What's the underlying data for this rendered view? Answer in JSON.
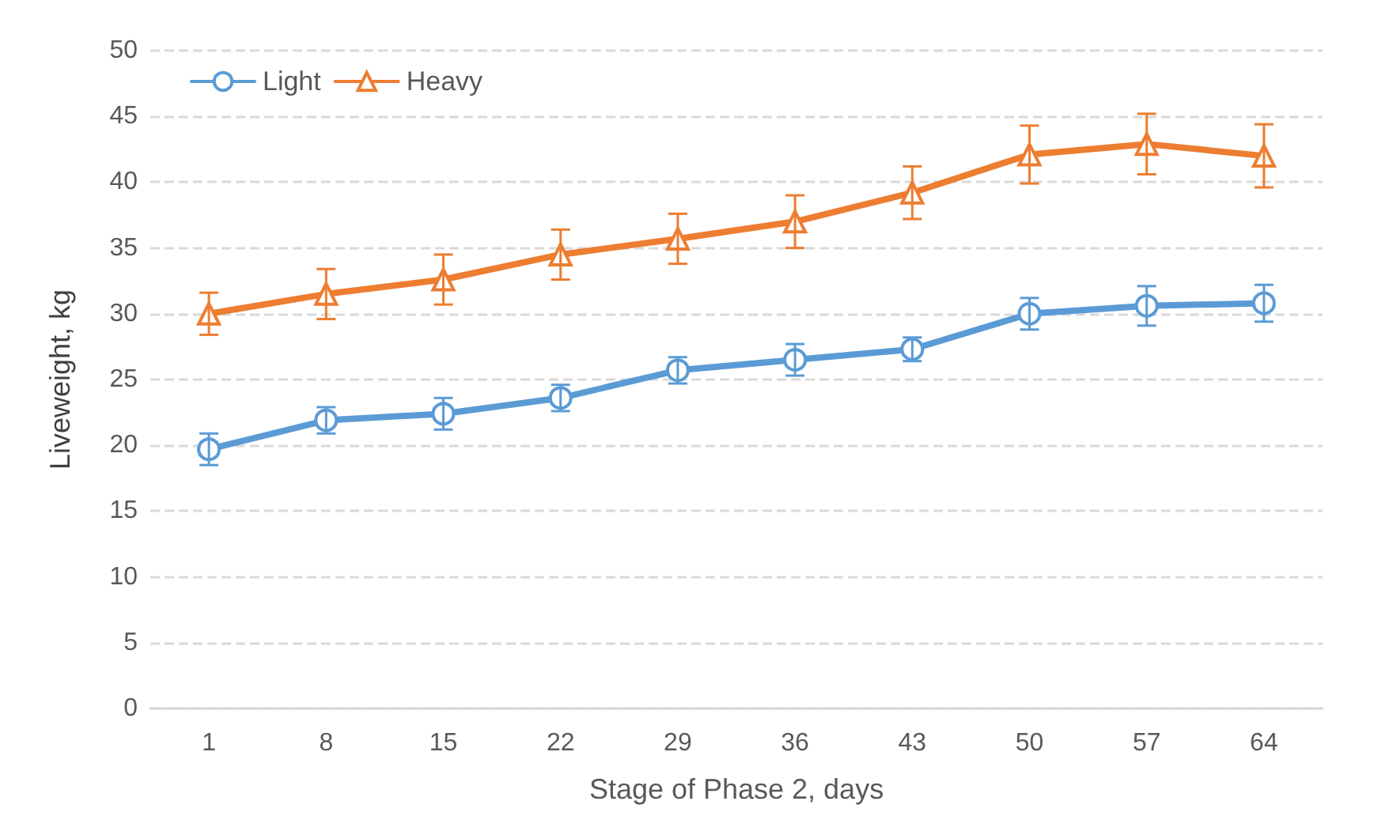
{
  "chart_data": {
    "type": "line",
    "xlabel": "Stage of Phase 2, days",
    "ylabel": "Liveweight, kg",
    "categories": [
      "1",
      "8",
      "15",
      "22",
      "29",
      "36",
      "43",
      "50",
      "57",
      "64"
    ],
    "series": [
      {
        "name": "Light",
        "color": "#5b9bd5",
        "marker": "circle",
        "values": [
          19.7,
          21.9,
          22.4,
          23.6,
          25.7,
          26.5,
          27.3,
          30.0,
          30.6,
          30.8
        ],
        "errors": [
          1.2,
          1.0,
          1.2,
          1.0,
          1.0,
          1.2,
          0.9,
          1.2,
          1.5,
          1.4
        ]
      },
      {
        "name": "Heavy",
        "color": "#ed7d31",
        "marker": "triangle",
        "values": [
          30.0,
          31.5,
          32.6,
          34.5,
          35.7,
          37.0,
          39.2,
          42.1,
          42.9,
          42.0
        ],
        "errors": [
          1.6,
          1.9,
          1.9,
          1.9,
          1.9,
          2.0,
          2.0,
          2.2,
          2.3,
          2.4
        ]
      }
    ],
    "ylim": [
      0,
      50
    ],
    "yticks": [
      0,
      5,
      10,
      15,
      20,
      25,
      30,
      35,
      40,
      45,
      50
    ],
    "grid": "y",
    "legend": "top left",
    "line_style": "solid"
  }
}
